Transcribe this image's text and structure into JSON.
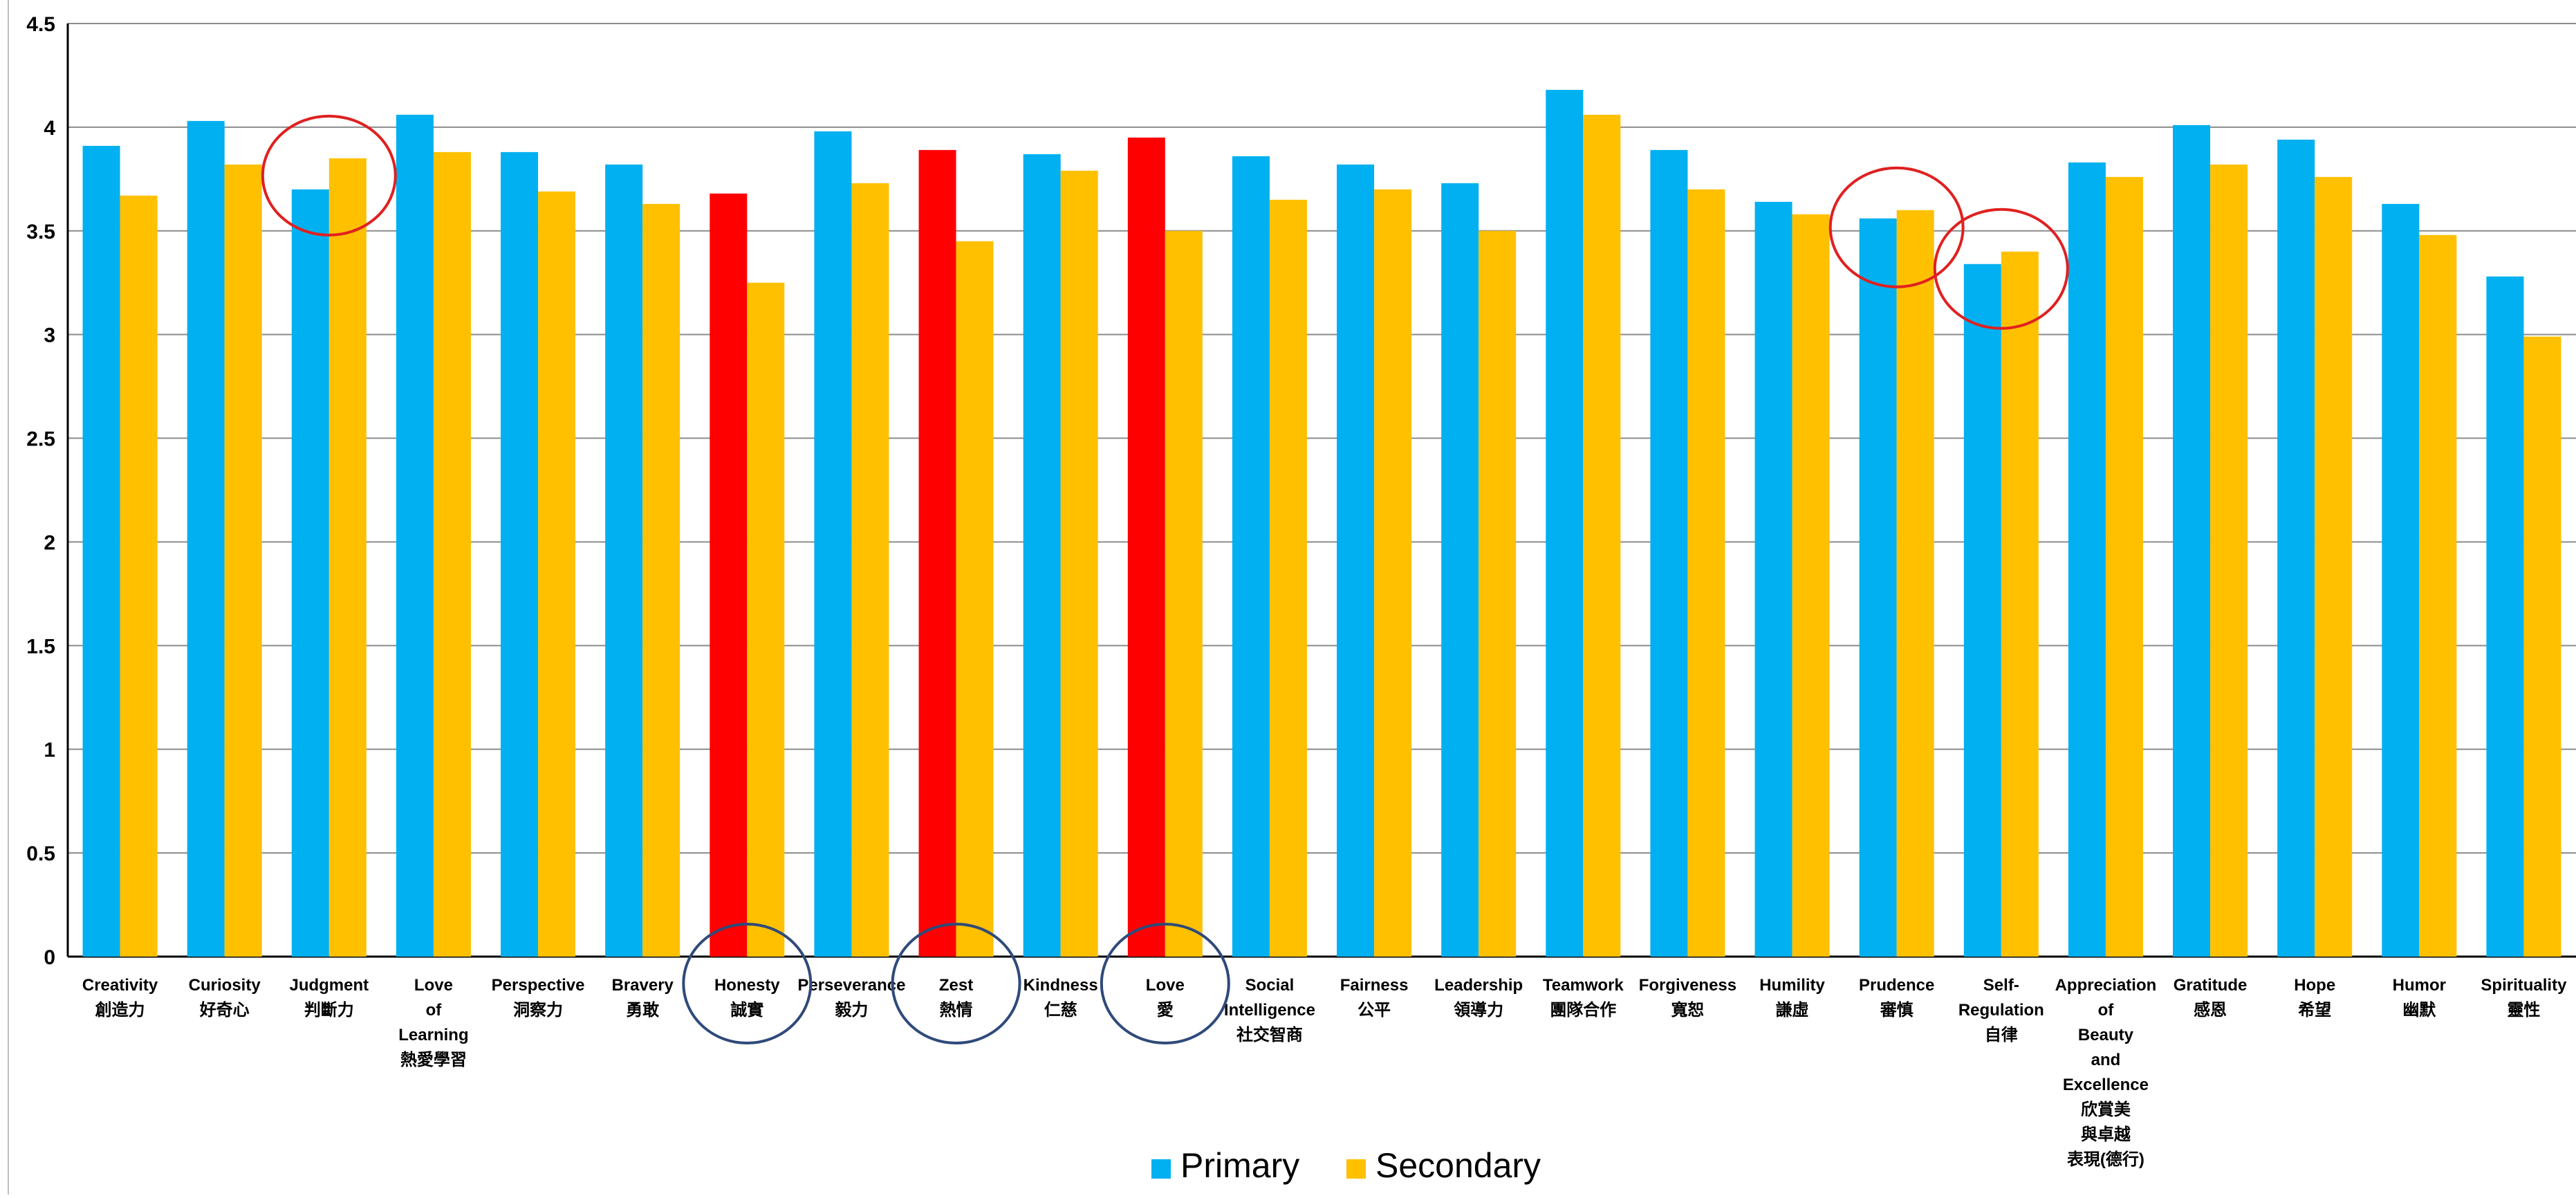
{
  "chart_data": {
    "type": "bar",
    "title": "",
    "xlabel": "",
    "ylabel": "",
    "ylim": [
      0,
      4.5
    ],
    "yticks": [
      "0",
      "0.5",
      "1",
      "1.5",
      "2",
      "2.5",
      "3",
      "3.5",
      "4",
      "4.5"
    ],
    "grid": "horizontal",
    "legend_position": "bottom",
    "colors": {
      "primary": "#00B0F0",
      "secondary": "#FFC000",
      "highlight": "#FF0000",
      "red_circle": "#E02020",
      "navy_circle": "#2F4A7A"
    },
    "series": [
      {
        "name": "Primary",
        "values": [
          3.91,
          4.03,
          3.7,
          4.06,
          3.88,
          3.82,
          3.68,
          3.98,
          3.89,
          3.87,
          3.95,
          3.86,
          3.82,
          3.73,
          4.18,
          3.89,
          3.64,
          3.56,
          3.34,
          3.83,
          4.01,
          3.94,
          3.63,
          3.28
        ]
      },
      {
        "name": "Secondary",
        "values": [
          3.67,
          3.82,
          3.85,
          3.88,
          3.69,
          3.63,
          3.25,
          3.73,
          3.45,
          3.79,
          3.5,
          3.65,
          3.7,
          3.5,
          4.06,
          3.7,
          3.58,
          3.6,
          3.4,
          3.76,
          3.82,
          3.76,
          3.48,
          2.99
        ]
      }
    ],
    "categories": [
      [
        "Creativity",
        "創造力"
      ],
      [
        "Curiosity",
        "好奇心"
      ],
      [
        "Judgment",
        "判斷力"
      ],
      [
        "Love",
        "of",
        "Learning",
        "熱愛學習"
      ],
      [
        "Perspective",
        "洞察力"
      ],
      [
        "Bravery",
        "勇敢"
      ],
      [
        "Honesty",
        "誠實"
      ],
      [
        "Perseverance",
        "毅力"
      ],
      [
        "Zest",
        "熱情"
      ],
      [
        "Kindness",
        "仁慈"
      ],
      [
        "Love",
        "愛"
      ],
      [
        "Social",
        "Intelligence",
        "社交智商"
      ],
      [
        "Fairness",
        "公平"
      ],
      [
        "Leadership",
        "領導力"
      ],
      [
        "Teamwork",
        "團隊合作"
      ],
      [
        "Forgiveness",
        "寬恕"
      ],
      [
        "Humility",
        "謙虛"
      ],
      [
        "Prudence",
        "審慎"
      ],
      [
        "Self-",
        "Regulation",
        "自律"
      ],
      [
        "Appreciation",
        "of",
        "Beauty",
        "and",
        "Excellence",
        "欣賞美",
        "與卓越",
        "表現(德行)"
      ],
      [
        "Gratitude",
        "感恩"
      ],
      [
        "Hope",
        "希望"
      ],
      [
        "Humor",
        "幽默"
      ],
      [
        "Spirituality",
        "靈性"
      ]
    ],
    "highlighted_primary": [
      "Honesty",
      "Zest",
      "Love"
    ],
    "annotations": {
      "red_circles": [
        "Judgment",
        "Prudence",
        "Self-Regulation"
      ],
      "navy_circles": [
        "Honesty",
        "Zest",
        "Love"
      ]
    }
  }
}
